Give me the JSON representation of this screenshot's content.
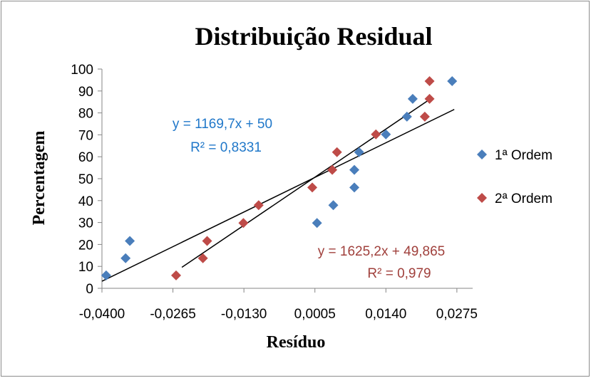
{
  "chart_data": {
    "type": "scatter",
    "title": "Distribuição Residual",
    "xlabel": "Resíduo",
    "ylabel": "Percentagem",
    "xlim": [
      -0.04,
      0.0305
    ],
    "ylim": [
      0,
      100
    ],
    "xticks": [
      "-0,0400",
      "-0,0265",
      "-0,0130",
      "0,0005",
      "0,0140",
      "0,0275"
    ],
    "yticks": [
      "0",
      "10",
      "20",
      "30",
      "40",
      "50",
      "60",
      "70",
      "80",
      "90",
      "100"
    ],
    "grid": false,
    "legend_position": "right",
    "series": [
      {
        "name": "1ª Ordem",
        "color": "#4a7ebb",
        "marker": "diamond",
        "points": [
          [
            -0.0392,
            5.9
          ],
          [
            -0.0355,
            13.7
          ],
          [
            -0.0347,
            21.6
          ],
          [
            0.0009,
            29.8
          ],
          [
            0.004,
            37.9
          ],
          [
            0.008,
            46.0
          ],
          [
            0.008,
            54.0
          ],
          [
            0.0089,
            62.1
          ],
          [
            0.014,
            70.2
          ],
          [
            0.018,
            78.3
          ],
          [
            0.0191,
            86.4
          ],
          [
            0.0266,
            94.5
          ]
        ],
        "trendline": {
          "slope": 1169.7,
          "intercept": 50,
          "x_range": [
            -0.04,
            0.027
          ]
        },
        "equation": "y = 1169,7x + 50",
        "r2": "R² = 0,8331"
      },
      {
        "name": "2ª Ordem",
        "color": "#be4b48",
        "marker": "diamond",
        "points": [
          [
            -0.0259,
            5.9
          ],
          [
            -0.0208,
            13.7
          ],
          [
            -0.02,
            21.6
          ],
          [
            -0.0131,
            29.8
          ],
          [
            -0.0102,
            37.9
          ],
          [
            0.0,
            46.0
          ],
          [
            0.0038,
            54.0
          ],
          [
            0.0047,
            62.1
          ],
          [
            0.0121,
            70.2
          ],
          [
            0.0214,
            78.3
          ],
          [
            0.0223,
            86.4
          ],
          [
            0.0223,
            94.5
          ]
        ],
        "trendline": {
          "slope": 1625.2,
          "intercept": 49.865,
          "x_range": [
            -0.0248,
            0.0228
          ]
        },
        "equation": "y = 1625,2x + 49,865",
        "r2": "R² = 0,979"
      }
    ]
  }
}
